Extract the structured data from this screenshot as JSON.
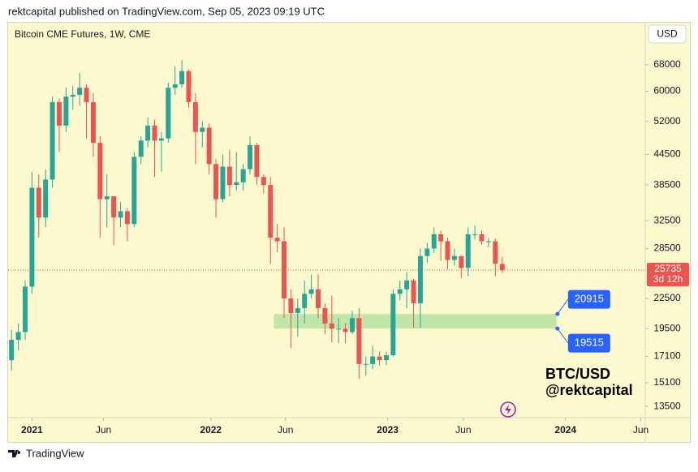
{
  "header": {
    "publisher": "rektcapital published on TradingView.com, Sep 05, 2023 09:19 UTC"
  },
  "chart_data": {
    "type": "candlestick",
    "title": "Bitcoin CME Futures, 1W, CME",
    "currency": "USD",
    "watermark": [
      "BTC/USD",
      "@rektcapital"
    ],
    "up_color": "#26a69a",
    "down_color": "#ef5350",
    "log_scale": true,
    "xlim": [
      0,
      187
    ],
    "xticks": [
      {
        "value": 7,
        "label": "2021"
      },
      {
        "value": 28,
        "label": "Jun"
      },
      {
        "value": 59.5,
        "label": "2022"
      },
      {
        "value": 81.4,
        "label": "Jun"
      },
      {
        "value": 111.4,
        "label": "2023"
      },
      {
        "value": 133.6,
        "label": "Jun"
      },
      {
        "value": 163.6,
        "label": "2024"
      },
      {
        "value": 185.7,
        "label": "Jun"
      }
    ],
    "ylim": [
      12800,
      83000
    ],
    "yticks": [
      68000,
      60000,
      52000,
      44500,
      38500,
      32500,
      28500,
      22500,
      19500,
      17100,
      15100,
      13500
    ],
    "x": [
      1,
      3,
      5,
      7,
      9,
      11,
      13,
      15,
      17,
      19,
      21,
      23,
      25,
      27,
      29,
      31,
      33,
      35,
      37,
      39,
      41,
      43,
      45,
      47,
      49,
      51,
      53,
      55,
      57,
      59,
      61,
      63,
      65,
      67,
      69,
      71,
      73,
      75,
      77,
      79,
      81,
      83,
      85,
      87,
      89,
      91,
      93,
      95,
      97,
      99,
      101,
      103,
      105,
      107,
      109,
      111,
      113,
      115,
      117,
      119,
      121,
      123,
      125,
      127,
      129,
      131,
      133,
      135,
      137,
      139,
      141,
      143,
      145
    ],
    "open": [
      16800,
      18500,
      19200,
      23800,
      38000,
      33000,
      39500,
      57000,
      51000,
      58500,
      59000,
      61000,
      57000,
      47000,
      36000,
      36500,
      33000,
      34000,
      32000,
      44000,
      47500,
      51000,
      47500,
      48000,
      61000,
      62000,
      66000,
      57000,
      49500,
      50500,
      42500,
      36000,
      42000,
      38500,
      39000,
      41500,
      46500,
      40000,
      38500,
      30000,
      29500,
      22500,
      21000,
      21500,
      23000,
      23500,
      21500,
      20000,
      19500,
      19500,
      19200,
      20500,
      16500,
      16500,
      17100,
      16800,
      17200,
      23000,
      23500,
      24500,
      22000,
      27500,
      28500,
      30500,
      29500,
      27000,
      27500,
      26000,
      30500,
      30500,
      29500,
      29500,
      26500
    ],
    "high": [
      19400,
      20000,
      24500,
      41000,
      40500,
      41500,
      58500,
      58000,
      61000,
      61500,
      65500,
      62000,
      59500,
      48500,
      40500,
      36500,
      35500,
      34500,
      45000,
      48500,
      53000,
      52500,
      49500,
      62500,
      67500,
      69500,
      66500,
      59500,
      52000,
      51500,
      43500,
      44500,
      45500,
      45000,
      42500,
      48500,
      47000,
      40500,
      40000,
      32000,
      31500,
      23500,
      22500,
      24500,
      25200,
      25200,
      22000,
      22800,
      20500,
      20000,
      21200,
      21500,
      17100,
      18000,
      17500,
      17500,
      23500,
      24500,
      25500,
      24700,
      28500,
      29300,
      31500,
      31000,
      30000,
      28500,
      27500,
      31500,
      31800,
      31100,
      30000,
      29900,
      27400
    ],
    "low": [
      16000,
      17600,
      18500,
      23000,
      30000,
      31500,
      38000,
      45000,
      49500,
      55000,
      56000,
      48000,
      44000,
      30000,
      31500,
      29000,
      31500,
      29500,
      31500,
      42500,
      46000,
      40000,
      41000,
      47000,
      59000,
      61000,
      55500,
      42500,
      46000,
      40500,
      33000,
      35500,
      36500,
      37500,
      37500,
      40500,
      38500,
      37000,
      26500,
      28000,
      20500,
      17800,
      18800,
      20000,
      22500,
      20500,
      19000,
      18300,
      18200,
      18200,
      19000,
      15400,
      15600,
      16100,
      16400,
      16400,
      17100,
      22300,
      21500,
      19600,
      19600,
      26600,
      27900,
      26900,
      25800,
      26300,
      24800,
      25000,
      29800,
      29000,
      28700,
      25000,
      25400
    ],
    "close": [
      18500,
      19200,
      23800,
      38000,
      33000,
      39500,
      57000,
      51000,
      58500,
      59000,
      61000,
      57000,
      47000,
      36000,
      36500,
      33000,
      34000,
      32000,
      44000,
      47500,
      51000,
      47500,
      48000,
      61000,
      62000,
      66000,
      57000,
      49500,
      50500,
      42500,
      36000,
      42000,
      38500,
      39000,
      41500,
      46500,
      40000,
      38500,
      30000,
      29500,
      22500,
      21000,
      21500,
      23000,
      23500,
      21500,
      20000,
      19500,
      19500,
      19200,
      20500,
      16500,
      16500,
      17100,
      16800,
      17200,
      23000,
      23500,
      24500,
      22000,
      27500,
      28500,
      30500,
      29500,
      27000,
      27500,
      26000,
      30500,
      30500,
      29500,
      29500,
      26500,
      25735
    ],
    "last_price": 25735,
    "countdown": "3d 12h",
    "zone": {
      "low": 19515,
      "high": 20915,
      "xrange": [
        78,
        161
      ],
      "color": "#b5e3a3",
      "label_color": "#2962ff"
    }
  },
  "footer": {
    "brand": "TradingView"
  }
}
